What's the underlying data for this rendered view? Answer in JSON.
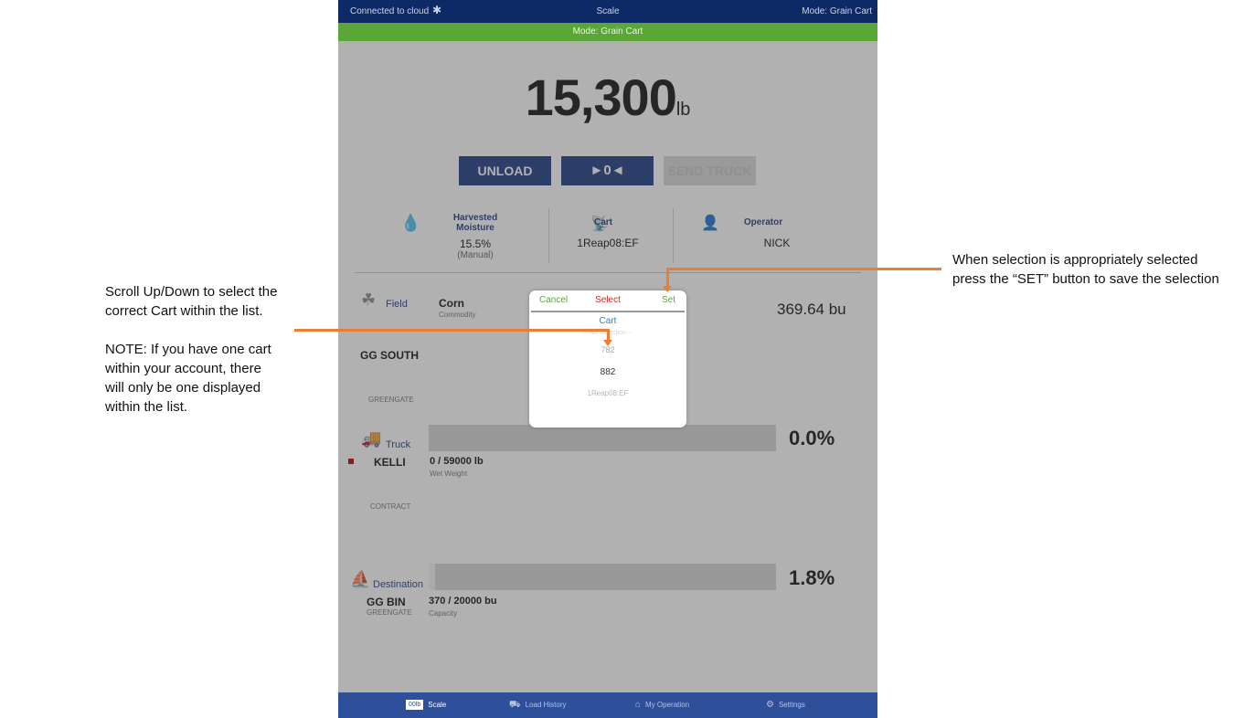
{
  "status": {
    "left": "Connected to cloud",
    "bluetooth_icon": "bluetooth-icon",
    "center": "Scale",
    "right": "Mode: Grain Cart"
  },
  "mode_bar": "Mode: Grain Cart",
  "weight": {
    "value": "15,300",
    "unit": "lb"
  },
  "buttons": {
    "unload": "UNLOAD",
    "zero": "►0◄",
    "send_truck": "SEND TRUCK"
  },
  "info": {
    "moisture": {
      "label": "Harvested Moisture",
      "value": "15.5%",
      "sub": "(Manual)"
    },
    "cart": {
      "label": "Cart",
      "value": "1Reap08:EF"
    },
    "operator": {
      "label": "Operator",
      "value": "NICK"
    }
  },
  "field": {
    "label": "Field",
    "commodity": "Corn",
    "commodity_sub": "Commodity",
    "amount": "369.64 bu",
    "name": "GG SOUTH",
    "farm": "GREENGATE"
  },
  "truck": {
    "label": "Truck",
    "name": "KELLI",
    "weight": "0 / 59000 lb",
    "weight_sub": "Wet Weight",
    "percent": "0.0%",
    "fill_fraction": 0.0,
    "contract": "CONTRACT"
  },
  "destination": {
    "label": "Destination",
    "name": "GG BIN",
    "farm": "GREENGATE",
    "capacity": "370 / 20000 bu",
    "capacity_sub": "Capacity",
    "percent": "1.8%",
    "fill_fraction": 0.018
  },
  "popup": {
    "cancel": "Cancel",
    "title": "Select",
    "set": "Set",
    "category": "Cart",
    "options": [
      "-- No Selection --",
      "782",
      "882",
      "1Reap08:EF"
    ]
  },
  "tabs": [
    {
      "label": "Scale",
      "icon_text": "00lb"
    },
    {
      "label": "Load History"
    },
    {
      "label": "My Operation"
    },
    {
      "label": "Settings"
    }
  ],
  "annotations": {
    "left": [
      "Scroll Up/Down to select the",
      "correct Cart within the list.",
      "NOTE:  If you have one cart",
      "within your account, there",
      "will only be one displayed",
      "within the list."
    ],
    "right": [
      "When selection is appropriately selected",
      "press the “SET” button to save the selection"
    ]
  },
  "colors": {
    "accent_orange": "#ED7D31",
    "nav_blue": "#0e2a66",
    "mode_green": "#5aa637",
    "button_blue": "#1c3a82"
  }
}
